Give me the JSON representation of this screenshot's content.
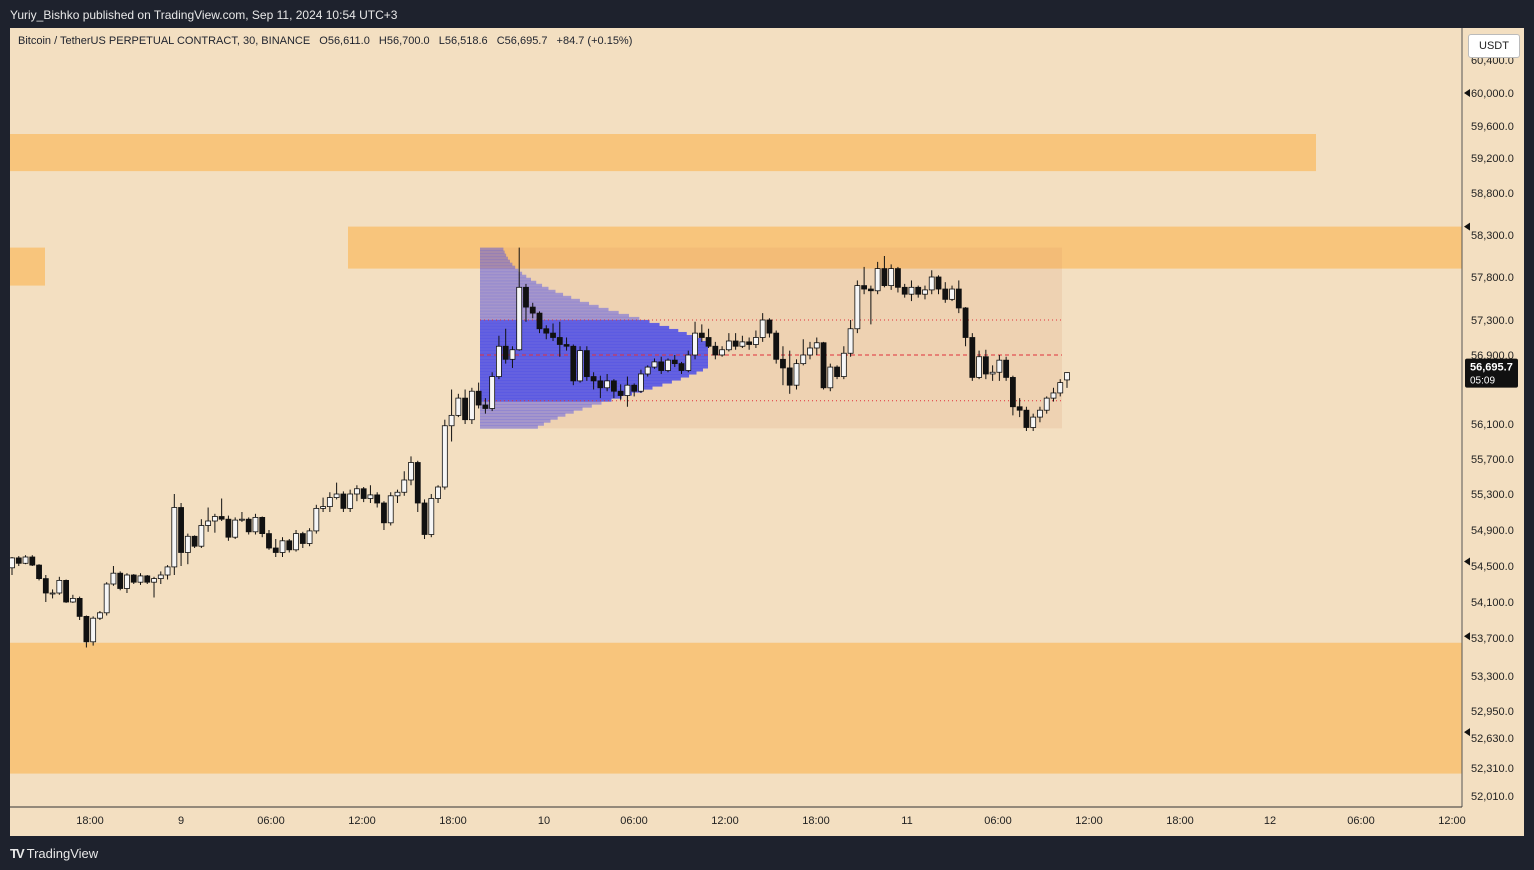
{
  "header": {
    "publisher": "Yuriy_Bishko published on TradingView.com, Sep 11, 2024 10:54 UTC+3"
  },
  "legend": {
    "symbol": "Bitcoin / TetherUS PERPETUAL CONTRACT, 30, BINANCE",
    "open": "O56,611.0",
    "high": "H56,700.0",
    "low": "L56,518.6",
    "close": "C56,695.7",
    "change": "+84.7 (+0.15%)"
  },
  "currency": "USDT",
  "last_price": {
    "price": "56,695.7",
    "countdown": "05:09"
  },
  "footer": {
    "brand": "TradingView"
  },
  "colors": {
    "background": "#f3dfc1",
    "zone": "#f8c57c",
    "profile": "#4b4de8",
    "poc_line": "#e0303a",
    "candle_up": "#f6f6f6",
    "candle_down": "#111111"
  },
  "chart_data": {
    "type": "candlestick",
    "symbol": "BTCUSDT.P",
    "timeframe": "30",
    "y_ticks": [
      "60,400.0",
      "60,000.0",
      "59,600.0",
      "59,200.0",
      "58,800.0",
      "58,300.0",
      "57,800.0",
      "57,300.0",
      "56,900.0",
      "56,100.0",
      "55,700.0",
      "55,300.0",
      "54,900.0",
      "54,500.0",
      "54,100.0",
      "53,700.0",
      "53,300.0",
      "52,950.0",
      "52,630.0",
      "52,310.0",
      "52,010.0"
    ],
    "x_ticks": [
      "18:00",
      "9",
      "06:00",
      "12:00",
      "18:00",
      "10",
      "06:00",
      "12:00",
      "18:00",
      "11",
      "06:00",
      "12:00",
      "18:00",
      "12",
      "06:00",
      "12:00"
    ],
    "supply_demand_zones": [
      {
        "from": 59050,
        "to": 59500
      },
      {
        "from": 57900,
        "to": 58400
      },
      {
        "from": 52250,
        "to": 53650
      }
    ],
    "volume_profile": {
      "poc": 56900,
      "value_area_high": 57300,
      "value_area_low": 56370,
      "range_high": 58150,
      "range_low": 56050
    },
    "candles": [
      [
        54480,
        54600,
        54400,
        54590
      ],
      [
        54590,
        54610,
        54500,
        54530
      ],
      [
        54530,
        54620,
        54520,
        54600
      ],
      [
        54600,
        54620,
        54500,
        54510
      ],
      [
        54510,
        54520,
        54340,
        54360
      ],
      [
        54360,
        54400,
        54100,
        54200
      ],
      [
        54200,
        54240,
        54140,
        54200
      ],
      [
        54200,
        54380,
        54180,
        54340
      ],
      [
        54340,
        54350,
        54090,
        54100
      ],
      [
        54100,
        54180,
        54090,
        54140
      ],
      [
        54140,
        54160,
        53900,
        53940
      ],
      [
        53940,
        53950,
        53600,
        53660
      ],
      [
        53660,
        53940,
        53620,
        53920
      ],
      [
        53920,
        54000,
        53900,
        53980
      ],
      [
        53980,
        54320,
        53950,
        54300
      ],
      [
        54300,
        54500,
        54280,
        54420
      ],
      [
        54420,
        54440,
        54230,
        54250
      ],
      [
        54250,
        54420,
        54200,
        54400
      ],
      [
        54400,
        54410,
        54300,
        54320
      ],
      [
        54320,
        54420,
        54290,
        54390
      ],
      [
        54390,
        54400,
        54300,
        54320
      ],
      [
        54320,
        54380,
        54150,
        54360
      ],
      [
        54360,
        54440,
        54300,
        54400
      ],
      [
        54400,
        54510,
        54350,
        54490
      ],
      [
        54490,
        55300,
        54400,
        55150
      ],
      [
        55150,
        55200,
        54500,
        54650
      ],
      [
        54650,
        54860,
        54520,
        54830
      ],
      [
        54830,
        54840,
        54700,
        54720
      ],
      [
        54720,
        55020,
        54700,
        54950
      ],
      [
        54950,
        55150,
        54880,
        55000
      ],
      [
        55000,
        55080,
        54870,
        55050
      ],
      [
        55050,
        55250,
        55000,
        55020
      ],
      [
        55020,
        55060,
        54780,
        54820
      ],
      [
        54820,
        55040,
        54800,
        55010
      ],
      [
        55010,
        55100,
        54990,
        55020
      ],
      [
        55020,
        55040,
        54850,
        54880
      ],
      [
        54880,
        55080,
        54850,
        55040
      ],
      [
        55040,
        55050,
        54820,
        54860
      ],
      [
        54860,
        54900,
        54680,
        54700
      ],
      [
        54700,
        54800,
        54600,
        54650
      ],
      [
        54650,
        54820,
        54600,
        54780
      ],
      [
        54780,
        54800,
        54650,
        54680
      ],
      [
        54680,
        54900,
        54660,
        54860
      ],
      [
        54860,
        54880,
        54700,
        54750
      ],
      [
        54750,
        54920,
        54720,
        54890
      ],
      [
        54890,
        55180,
        54860,
        55140
      ],
      [
        55140,
        55260,
        55100,
        55160
      ],
      [
        55160,
        55320,
        55100,
        55260
      ],
      [
        55260,
        55430,
        55240,
        55300
      ],
      [
        55300,
        55330,
        55100,
        55140
      ],
      [
        55140,
        55350,
        55100,
        55300
      ],
      [
        55300,
        55400,
        55220,
        55360
      ],
      [
        55360,
        55380,
        55210,
        55250
      ],
      [
        55250,
        55400,
        55200,
        55290
      ],
      [
        55290,
        55320,
        55150,
        55200
      ],
      [
        55200,
        55220,
        54900,
        54980
      ],
      [
        54980,
        55320,
        54950,
        55280
      ],
      [
        55280,
        55350,
        55200,
        55320
      ],
      [
        55320,
        55560,
        55280,
        55460
      ],
      [
        55460,
        55730,
        55400,
        55660
      ],
      [
        55660,
        55680,
        55100,
        55200
      ],
      [
        55200,
        55240,
        54800,
        54850
      ],
      [
        54850,
        55300,
        54820,
        55250
      ],
      [
        55250,
        55400,
        55200,
        55380
      ],
      [
        55380,
        56150,
        55350,
        56080
      ],
      [
        56080,
        56500,
        55900,
        56200
      ],
      [
        56200,
        56450,
        56180,
        56400
      ],
      [
        56400,
        56500,
        56100,
        56150
      ],
      [
        56150,
        56520,
        56100,
        56480
      ],
      [
        56480,
        56580,
        56280,
        56320
      ],
      [
        56320,
        56400,
        56220,
        56280
      ],
      [
        56280,
        56700,
        56250,
        56650
      ],
      [
        56650,
        57120,
        56620,
        57000
      ],
      [
        57000,
        57200,
        56800,
        56850
      ],
      [
        56850,
        57000,
        56750,
        56960
      ],
      [
        56960,
        58150,
        56950,
        57680
      ],
      [
        57680,
        57720,
        57280,
        57450
      ],
      [
        57450,
        57500,
        57320,
        57380
      ],
      [
        57380,
        57400,
        57150,
        57200
      ],
      [
        57200,
        57240,
        57080,
        57150
      ],
      [
        57150,
        57260,
        57060,
        57100
      ],
      [
        57100,
        57280,
        56880,
        57020
      ],
      [
        57020,
        57100,
        56950,
        57000
      ],
      [
        57000,
        57020,
        56550,
        56600
      ],
      [
        56600,
        57000,
        56580,
        56950
      ],
      [
        56950,
        57000,
        56600,
        56650
      ],
      [
        56650,
        56700,
        56500,
        56600
      ],
      [
        56600,
        56660,
        56400,
        56520
      ],
      [
        56520,
        56680,
        56480,
        56600
      ],
      [
        56600,
        56620,
        56400,
        56480
      ],
      [
        56480,
        56560,
        56380,
        56430
      ],
      [
        56430,
        56650,
        56300,
        56550
      ],
      [
        56550,
        56570,
        56420,
        56480
      ],
      [
        56480,
        56730,
        56460,
        56680
      ],
      [
        56680,
        56780,
        56650,
        56760
      ],
      [
        56760,
        56860,
        56740,
        56820
      ],
      [
        56820,
        56880,
        56680,
        56720
      ],
      [
        56720,
        56860,
        56700,
        56840
      ],
      [
        56840,
        56900,
        56760,
        56800
      ],
      [
        56800,
        56820,
        56680,
        56720
      ],
      [
        56720,
        56950,
        56700,
        56900
      ],
      [
        56900,
        57280,
        56850,
        57150
      ],
      [
        57150,
        57250,
        57050,
        57100
      ],
      [
        57100,
        57200,
        56980,
        57000
      ],
      [
        57000,
        57050,
        56850,
        56900
      ],
      [
        56900,
        57000,
        56880,
        56960
      ],
      [
        56960,
        57150,
        56940,
        57060
      ],
      [
        57060,
        57150,
        56960,
        57000
      ],
      [
        57000,
        57120,
        56980,
        57050
      ],
      [
        57050,
        57100,
        56960,
        57020
      ],
      [
        57020,
        57180,
        56980,
        57100
      ],
      [
        57100,
        57380,
        57050,
        57300
      ],
      [
        57300,
        57320,
        57100,
        57150
      ],
      [
        57150,
        57180,
        56800,
        56850
      ],
      [
        56850,
        57000,
        56550,
        56750
      ],
      [
        56750,
        56950,
        56450,
        56550
      ],
      [
        56550,
        56850,
        56500,
        56800
      ],
      [
        56800,
        57080,
        56780,
        56900
      ],
      [
        56900,
        57050,
        56850,
        56980
      ],
      [
        56980,
        57100,
        56900,
        57040
      ],
      [
        57040,
        57050,
        56500,
        56520
      ],
      [
        56520,
        56800,
        56480,
        56760
      ],
      [
        56760,
        56780,
        56620,
        56650
      ],
      [
        56650,
        57000,
        56620,
        56920
      ],
      [
        56920,
        57300,
        56880,
        57200
      ],
      [
        57200,
        57760,
        57150,
        57700
      ],
      [
        57700,
        57920,
        57600,
        57660
      ],
      [
        57660,
        57700,
        57250,
        57640
      ],
      [
        57640,
        57980,
        57600,
        57900
      ],
      [
        57900,
        58050,
        57680,
        57700
      ],
      [
        57700,
        57950,
        57650,
        57900
      ],
      [
        57900,
        57920,
        57620,
        57680
      ],
      [
        57680,
        57720,
        57560,
        57600
      ],
      [
        57600,
        57760,
        57520,
        57680
      ],
      [
        57680,
        57700,
        57560,
        57600
      ],
      [
        57600,
        57700,
        57540,
        57650
      ],
      [
        57650,
        57880,
        57600,
        57800
      ],
      [
        57800,
        57820,
        57600,
        57660
      ],
      [
        57660,
        57740,
        57500,
        57540
      ],
      [
        57540,
        57700,
        57520,
        57660
      ],
      [
        57660,
        57760,
        57380,
        57440
      ],
      [
        57440,
        57450,
        57000,
        57100
      ],
      [
        57100,
        57150,
        56600,
        56640
      ],
      [
        56640,
        56950,
        56620,
        56880
      ],
      [
        56880,
        56960,
        56620,
        56680
      ],
      [
        56680,
        56780,
        56600,
        56700
      ],
      [
        56700,
        56900,
        56600,
        56840
      ],
      [
        56840,
        56880,
        56600,
        56640
      ],
      [
        56640,
        56660,
        56200,
        56300
      ],
      [
        56300,
        56400,
        56180,
        56260
      ],
      [
        56260,
        56300,
        56020,
        56060
      ],
      [
        56060,
        56220,
        56020,
        56180
      ],
      [
        56180,
        56300,
        56120,
        56260
      ],
      [
        56260,
        56420,
        56220,
        56400
      ],
      [
        56400,
        56520,
        56360,
        56460
      ],
      [
        56460,
        56620,
        56420,
        56580
      ],
      [
        56611,
        56700,
        56518.6,
        56695.7
      ]
    ]
  }
}
